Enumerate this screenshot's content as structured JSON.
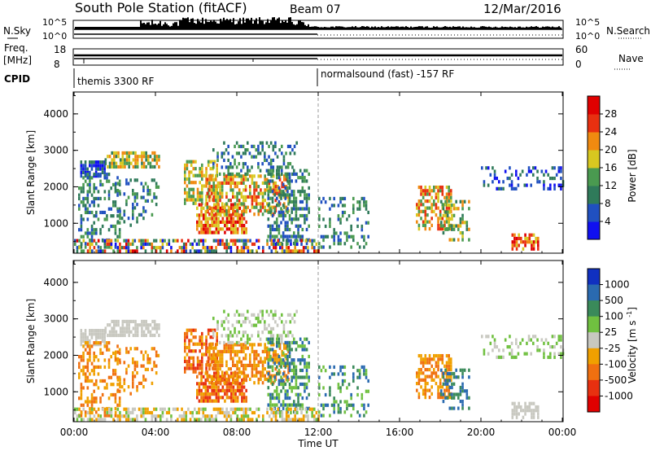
{
  "header": {
    "station": "South Pole Station (fitACF)",
    "beam": "Beam 07",
    "date": "12/Mar/2016"
  },
  "strips": {
    "nsky_label": "N.Sky",
    "nsky_ticks": [
      "10^5",
      "10^0"
    ],
    "nsearch_label": "N.Search",
    "nsearch_ticks": [
      "10^5",
      "10^0"
    ],
    "freq_label_1": "Freq.",
    "freq_label_2": "[MHz]",
    "freq_ticks": [
      "18",
      "8"
    ],
    "nave_label": "Nave",
    "nave_ticks": [
      "60",
      "0"
    ],
    "cpid_label": "CPID",
    "cpid_left": "themis 3300 RF",
    "cpid_right": "normalsound (fast) -157 RF"
  },
  "chart_data": [
    {
      "type": "heatmap",
      "title": "",
      "xlabel": "",
      "ylabel": "Slant Range [km]",
      "x_ticks": [
        "00:00",
        "04:00",
        "08:00",
        "12:00",
        "16:00",
        "20:00",
        "00:00"
      ],
      "y_ticks": [
        "1000",
        "2000",
        "3000",
        "4000"
      ],
      "ylim": [
        180,
        4600
      ],
      "colorbar": {
        "label": "Power [dB]",
        "ticks": [
          "4",
          "8",
          "12",
          "16",
          "20",
          "24",
          "28"
        ],
        "colors": [
          "#1010f0",
          "#2050c0",
          "#2f7a5a",
          "#4a9a50",
          "#d8c820",
          "#f08a10",
          "#e83010",
          "#e00000"
        ]
      }
    },
    {
      "type": "heatmap",
      "title": "",
      "xlabel": "Time UT",
      "ylabel": "Slant Range [km]",
      "x_ticks": [
        "00:00",
        "04:00",
        "08:00",
        "12:00",
        "16:00",
        "20:00",
        "00:00"
      ],
      "y_ticks": [
        "1000",
        "2000",
        "3000",
        "4000"
      ],
      "ylim": [
        180,
        4600
      ],
      "colorbar": {
        "label": "Velocity [m s^-1]",
        "ticks": [
          "1000",
          "500",
          "100",
          "25",
          "-25",
          "-100",
          "-500",
          "-1000"
        ],
        "colors": [
          "#1030c0",
          "#2a6ab0",
          "#3a8a5a",
          "#70c040",
          "#c8c8c0",
          "#f0a000",
          "#f07010",
          "#e83010",
          "#e00000"
        ]
      }
    }
  ],
  "axes": {
    "time_label": "Time UT"
  }
}
